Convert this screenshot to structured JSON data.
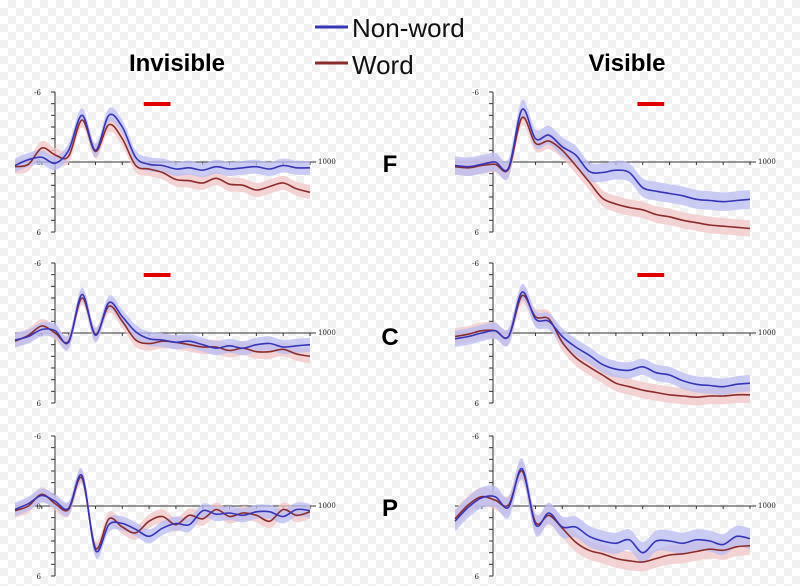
{
  "chart_data": {
    "type": "line",
    "legend": {
      "position": "top-center",
      "entries": [
        {
          "name": "Non-word",
          "color": "#3535b5"
        },
        {
          "name": "Word",
          "color": "#8b2c2c"
        }
      ]
    },
    "columns": [
      "Invisible",
      "Visible"
    ],
    "rows": [
      "F",
      "C",
      "P"
    ],
    "y_axis": {
      "ticks": [
        -6,
        0,
        6
      ],
      "inverted": true
    },
    "x_axis": {
      "ticks": [
        0,
        1000
      ]
    },
    "grid": false,
    "significance_color": "#e00000",
    "colors": {
      "nonword_line": "#3535b5",
      "nonword_band": "#b9bcf2",
      "word_line": "#8b2c2c",
      "word_band": "#f0c6c6"
    },
    "x": [
      -100,
      -50,
      0,
      50,
      100,
      150,
      200,
      250,
      300,
      350,
      400,
      450,
      500,
      550,
      600,
      650,
      700,
      750,
      800,
      850,
      900,
      950,
      1000
    ],
    "panels": [
      {
        "row": "F",
        "column": "Invisible",
        "sig_window": [
          380,
          480
        ],
        "series": [
          {
            "name": "Non-word",
            "values": [
              0.3,
              -0.2,
              -0.4,
              0.1,
              -1.0,
              -4.0,
              -1.0,
              -4.0,
              -3.0,
              -0.4,
              0.2,
              0.3,
              0.6,
              0.5,
              0.7,
              0.4,
              0.6,
              0.5,
              0.4,
              0.6,
              0.3,
              0.5,
              0.5
            ],
            "band": 0.6
          },
          {
            "name": "Word",
            "values": [
              0.4,
              0.2,
              -1.2,
              -0.6,
              -0.5,
              -3.6,
              -0.9,
              -3.2,
              -2.0,
              0.3,
              0.6,
              0.9,
              1.5,
              1.6,
              1.8,
              1.4,
              1.9,
              2.0,
              2.4,
              2.1,
              1.8,
              2.3,
              2.6
            ],
            "band": 0.6
          }
        ]
      },
      {
        "row": "F",
        "column": "Visible",
        "sig_window": [
          580,
          680
        ],
        "series": [
          {
            "name": "Non-word",
            "values": [
              0.3,
              0.4,
              0.2,
              0.0,
              0.5,
              -4.5,
              -2.0,
              -2.3,
              -1.3,
              -0.6,
              0.8,
              0.9,
              0.7,
              0.9,
              2.2,
              2.5,
              2.7,
              2.9,
              3.2,
              3.3,
              3.4,
              3.3,
              3.2
            ],
            "band": 0.8
          },
          {
            "name": "Word",
            "values": [
              0.4,
              0.5,
              0.3,
              0.2,
              0.6,
              -3.8,
              -1.6,
              -1.8,
              -1.0,
              0.3,
              1.7,
              3.1,
              3.6,
              3.9,
              4.1,
              4.5,
              4.7,
              5.0,
              5.2,
              5.4,
              5.5,
              5.6,
              5.7
            ],
            "band": 0.7
          }
        ]
      },
      {
        "row": "C",
        "column": "Invisible",
        "sig_window": [
          380,
          480
        ],
        "series": [
          {
            "name": "Non-word",
            "values": [
              0.6,
              0.3,
              -0.3,
              -0.2,
              0.8,
              -3.3,
              0.2,
              -2.6,
              -1.4,
              -0.1,
              0.5,
              0.6,
              0.8,
              0.7,
              1.0,
              1.3,
              1.1,
              1.3,
              1.0,
              0.9,
              1.2,
              1.1,
              1.0
            ],
            "band": 0.6
          },
          {
            "name": "Word",
            "values": [
              0.7,
              0.2,
              -0.6,
              0.0,
              0.7,
              -3.0,
              0.1,
              -2.3,
              -1.0,
              0.6,
              0.9,
              0.7,
              0.8,
              1.0,
              1.2,
              1.2,
              1.5,
              1.3,
              1.6,
              1.6,
              1.4,
              1.8,
              2.0
            ],
            "band": 0.6
          }
        ]
      },
      {
        "row": "C",
        "column": "Visible",
        "sig_window": [
          580,
          680
        ],
        "series": [
          {
            "name": "Non-word",
            "values": [
              0.5,
              0.3,
              0.0,
              -0.2,
              0.3,
              -3.5,
              -1.2,
              -1.0,
              0.3,
              1.2,
              1.9,
              2.7,
              3.1,
              3.2,
              2.9,
              3.4,
              3.6,
              4.1,
              4.4,
              4.5,
              4.6,
              4.4,
              4.3
            ],
            "band": 0.7
          },
          {
            "name": "Word",
            "values": [
              0.3,
              0.1,
              -0.2,
              -0.2,
              0.3,
              -3.2,
              -1.4,
              -1.2,
              0.8,
              2.1,
              2.9,
              3.6,
              4.3,
              4.6,
              4.9,
              5.1,
              5.3,
              5.4,
              5.5,
              5.4,
              5.4,
              5.3,
              5.3
            ],
            "band": 0.7
          }
        ]
      },
      {
        "row": "P",
        "column": "Invisible",
        "sig_window": null,
        "series": [
          {
            "name": "Non-word",
            "values": [
              0.3,
              -0.2,
              -0.9,
              -0.4,
              0.2,
              -2.6,
              3.8,
              1.6,
              1.5,
              2.0,
              2.6,
              1.9,
              1.5,
              1.6,
              0.4,
              0.7,
              0.6,
              0.8,
              0.5,
              0.5,
              0.9,
              0.3,
              0.4
            ],
            "band": 0.6
          },
          {
            "name": "Word",
            "values": [
              0.4,
              0.0,
              -1.0,
              -0.2,
              0.3,
              -2.4,
              3.6,
              1.1,
              1.8,
              2.3,
              1.3,
              0.9,
              1.6,
              0.8,
              1.1,
              0.3,
              0.9,
              0.6,
              0.8,
              1.3,
              0.3,
              0.8,
              0.5
            ],
            "band": 0.6
          }
        ]
      },
      {
        "row": "P",
        "column": "Visible",
        "sig_window": null,
        "series": [
          {
            "name": "Non-word",
            "values": [
              1.3,
              0.1,
              -0.7,
              -0.8,
              0.1,
              -3.2,
              1.6,
              0.6,
              1.8,
              1.8,
              2.6,
              3.0,
              3.2,
              2.9,
              4.0,
              3.0,
              3.0,
              3.2,
              2.9,
              3.0,
              3.3,
              2.6,
              2.8
            ],
            "band": 0.9
          },
          {
            "name": "Word",
            "values": [
              1.1,
              -0.1,
              -0.8,
              -0.5,
              -0.1,
              -3.0,
              1.4,
              0.8,
              1.9,
              3.1,
              3.8,
              4.1,
              4.5,
              4.7,
              4.8,
              4.5,
              4.2,
              4.1,
              3.9,
              3.7,
              3.8,
              3.5,
              3.4
            ],
            "band": 0.8
          }
        ]
      }
    ]
  }
}
